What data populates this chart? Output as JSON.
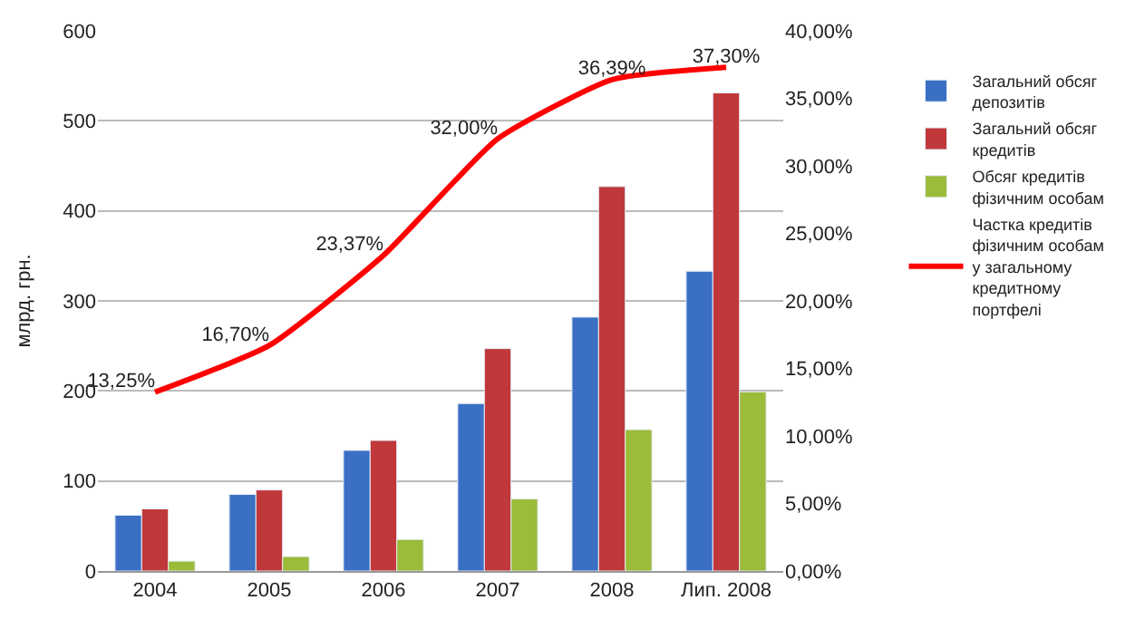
{
  "chart_data": {
    "type": "bar",
    "ylabel": "млрд. грн.",
    "categories": [
      "2004",
      "2005",
      "2006",
      "2007",
      "2008",
      "Лип. 2008"
    ],
    "series": [
      {
        "name": "Загальний обсяг\nдепозитів",
        "color": "#3a6fc4",
        "values": [
          62,
          85,
          134,
          186,
          282,
          333
        ]
      },
      {
        "name": "Загальний обсяг\nкредитів",
        "color": "#c0383a",
        "values": [
          69,
          90,
          145,
          247,
          427,
          531
        ]
      },
      {
        "name": "Обсяг кредитів\nфізичним особам",
        "color": "#9bbb3a",
        "values": [
          11,
          16,
          35,
          80,
          157,
          199
        ]
      },
      {
        "name": "Частка кредитів\nфізичним особам\nу загальному\nкредитному\nпортфелі",
        "type": "line",
        "axis": "y2",
        "color": "#ff0000",
        "values": [
          13.25,
          16.7,
          23.37,
          32.0,
          36.39,
          37.3
        ],
        "value_labels": [
          "13,25%",
          "16,70%",
          "23,37%",
          "32,00%",
          "36,39%",
          "37,30%"
        ]
      }
    ],
    "ylim": [
      0,
      600
    ],
    "yticks": [
      0,
      100,
      200,
      300,
      400,
      500,
      600
    ],
    "y2lim": [
      0,
      40
    ],
    "y2ticks": [
      {
        "value": 0,
        "label": "0,00%"
      },
      {
        "value": 5,
        "label": "5,00%"
      },
      {
        "value": 10,
        "label": "10,00%"
      },
      {
        "value": 15,
        "label": "15,00%"
      },
      {
        "value": 20,
        "label": "20,00%"
      },
      {
        "value": 25,
        "label": "25,00%"
      },
      {
        "value": 30,
        "label": "30,00%"
      },
      {
        "value": 35,
        "label": "35,00%"
      },
      {
        "value": 40,
        "label": "40,00%"
      }
    ],
    "grid": "y",
    "legend": "right",
    "marker": "none",
    "line_style": "solid"
  }
}
